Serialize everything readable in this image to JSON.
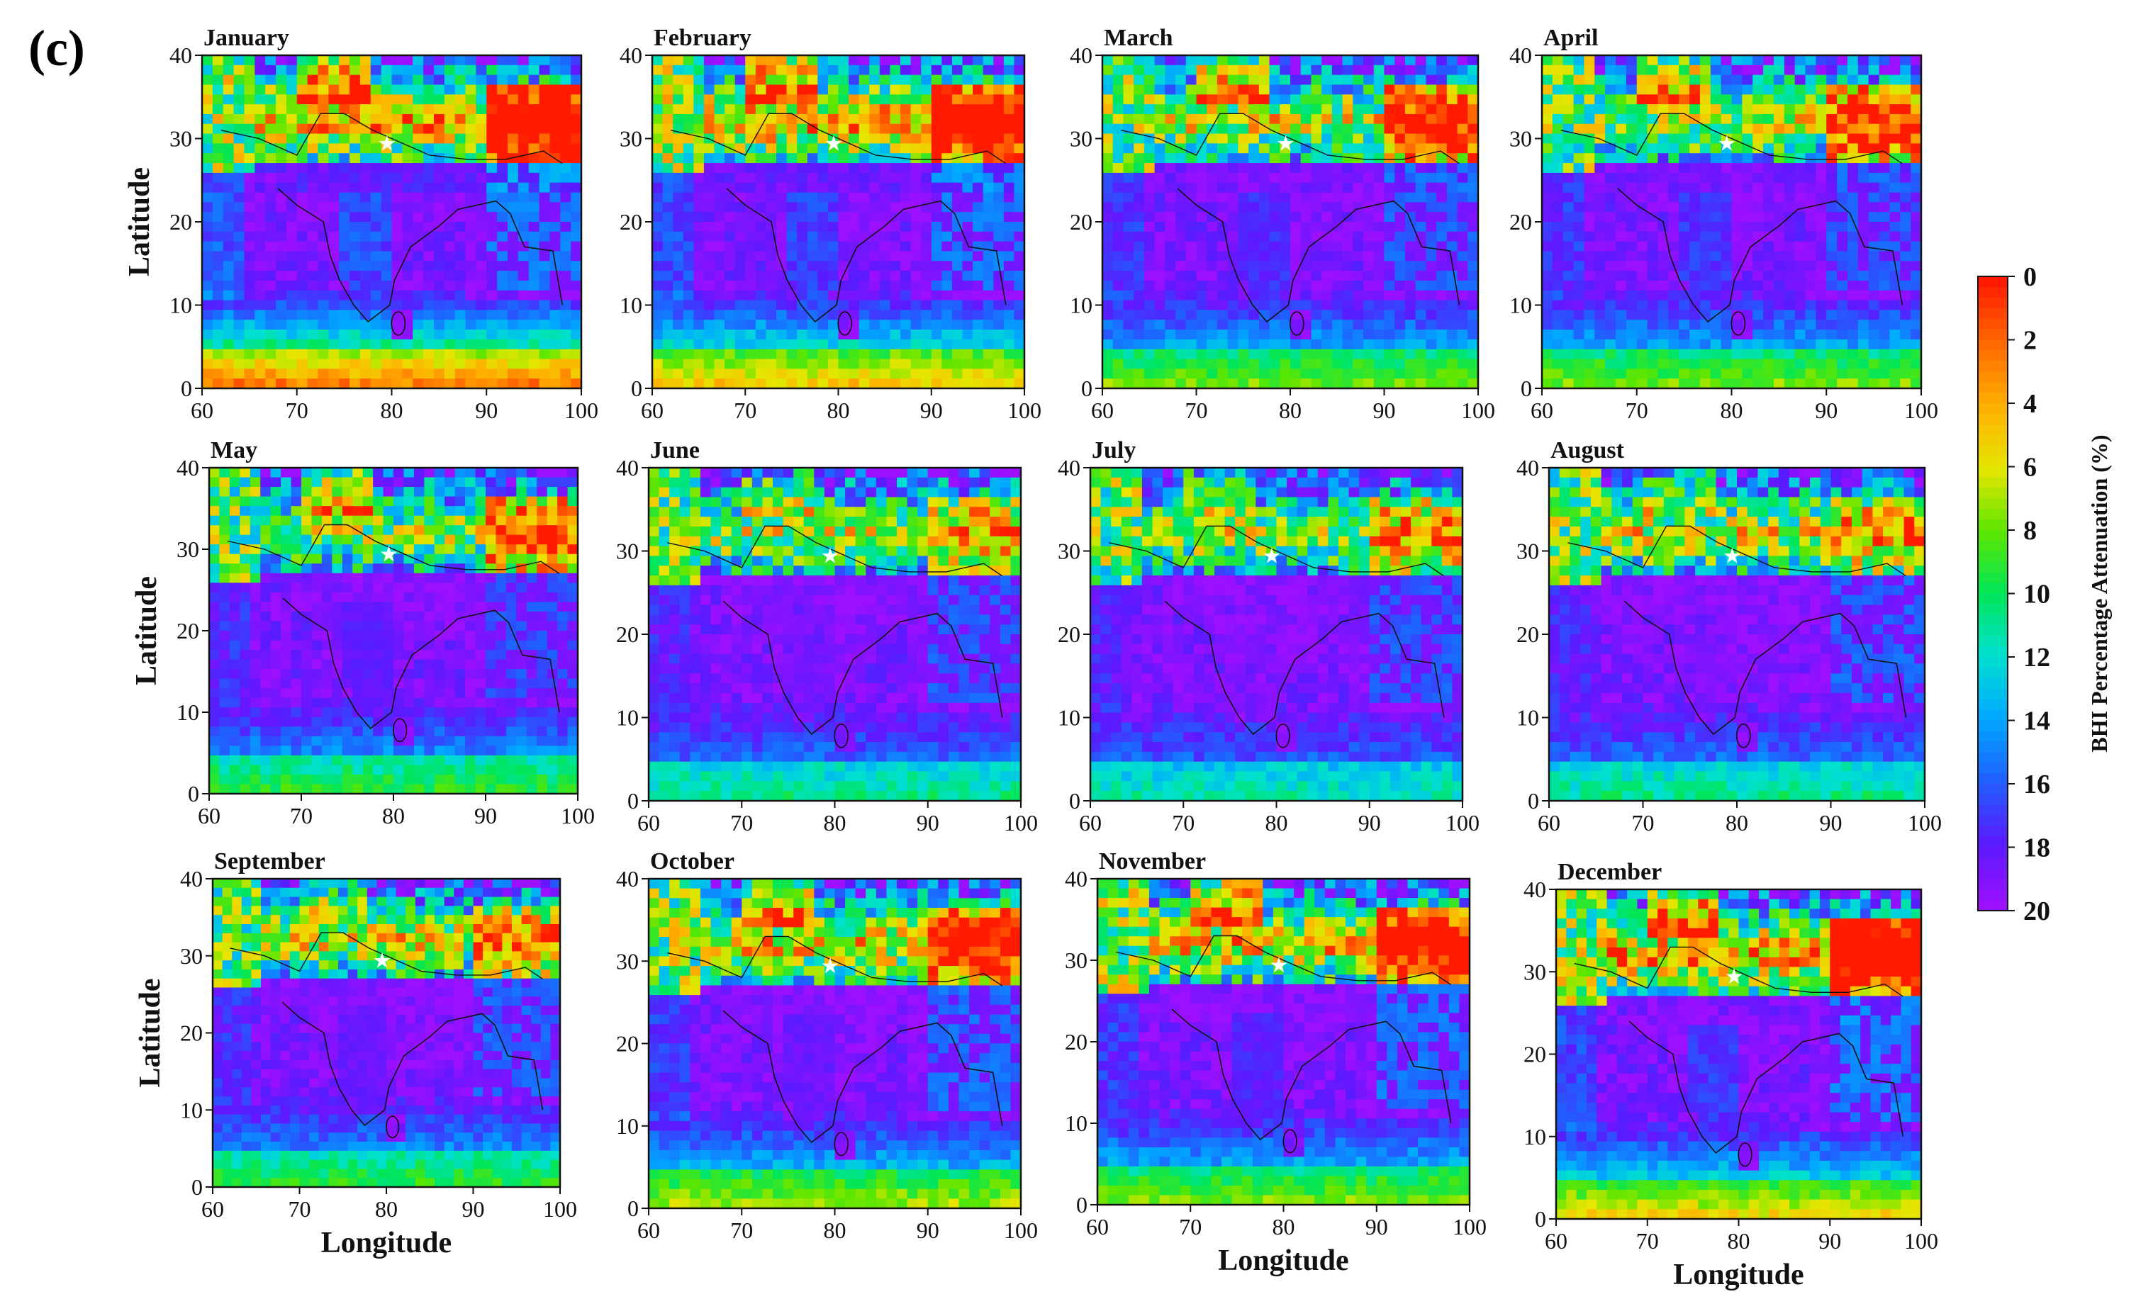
{
  "figure_label": "(c)",
  "chart_data": {
    "type": "heatmap",
    "description_units": "BHI Percentage Attenuation (%)",
    "x_axis": {
      "label": "Longitude",
      "range": [
        60,
        100
      ],
      "ticks": [
        60,
        70,
        80,
        90,
        100
      ]
    },
    "y_axis": {
      "label": "Latitude",
      "range": [
        0,
        40
      ],
      "ticks": [
        0,
        10,
        20,
        30,
        40
      ]
    },
    "colorbar": {
      "label": "BHI Percentage Attenuation (%)",
      "range": [
        0,
        20
      ],
      "ticks": [
        "0",
        "2",
        "4",
        "6",
        "8",
        "10",
        "12",
        "14",
        "16",
        "18",
        "20"
      ],
      "colors": [
        "#ff1a00",
        "#ff6a00",
        "#ffb000",
        "#e6e600",
        "#5ee600",
        "#00e65a",
        "#00e0d0",
        "#00a8ff",
        "#2060ff",
        "#5a1aff",
        "#9b10ff"
      ]
    },
    "station_marker": {
      "symbol": "★",
      "lon": 79.5,
      "lat": 29.4
    },
    "panels": [
      {
        "month": "January",
        "north_intensity": 0.95,
        "tibet_red": 0.95,
        "ocean_south": 0.9,
        "peninsula": 0.45,
        "indo_gangetic": 0.15
      },
      {
        "month": "February",
        "north_intensity": 0.95,
        "tibet_red": 0.9,
        "ocean_south": 0.75,
        "peninsula": 0.4,
        "indo_gangetic": 0.1
      },
      {
        "month": "March",
        "north_intensity": 0.8,
        "tibet_red": 0.85,
        "ocean_south": 0.55,
        "peninsula": 0.3,
        "indo_gangetic": 0.05
      },
      {
        "month": "April",
        "north_intensity": 0.75,
        "tibet_red": 0.8,
        "ocean_south": 0.55,
        "peninsula": 0.35,
        "indo_gangetic": 0.05
      },
      {
        "month": "May",
        "north_intensity": 0.7,
        "tibet_red": 0.75,
        "ocean_south": 0.45,
        "peninsula": 0.2,
        "indo_gangetic": 0.0
      },
      {
        "month": "June",
        "north_intensity": 0.75,
        "tibet_red": 0.45,
        "ocean_south": 0.35,
        "peninsula": 0.1,
        "indo_gangetic": 0.0
      },
      {
        "month": "July",
        "north_intensity": 0.75,
        "tibet_red": 0.5,
        "ocean_south": 0.3,
        "peninsula": 0.05,
        "indo_gangetic": 0.0
      },
      {
        "month": "August",
        "north_intensity": 0.8,
        "tibet_red": 0.4,
        "ocean_south": 0.35,
        "peninsula": 0.05,
        "indo_gangetic": 0.0
      },
      {
        "month": "September",
        "north_intensity": 0.8,
        "tibet_red": 0.45,
        "ocean_south": 0.45,
        "peninsula": 0.15,
        "indo_gangetic": 0.0
      },
      {
        "month": "October",
        "north_intensity": 0.85,
        "tibet_red": 0.8,
        "ocean_south": 0.6,
        "peninsula": 0.15,
        "indo_gangetic": 0.0
      },
      {
        "month": "November",
        "north_intensity": 0.9,
        "tibet_red": 0.9,
        "ocean_south": 0.55,
        "peninsula": 0.25,
        "indo_gangetic": 0.0
      },
      {
        "month": "December",
        "north_intensity": 0.95,
        "tibet_red": 0.95,
        "ocean_south": 0.7,
        "peninsula": 0.35,
        "indo_gangetic": 0.05
      }
    ]
  }
}
